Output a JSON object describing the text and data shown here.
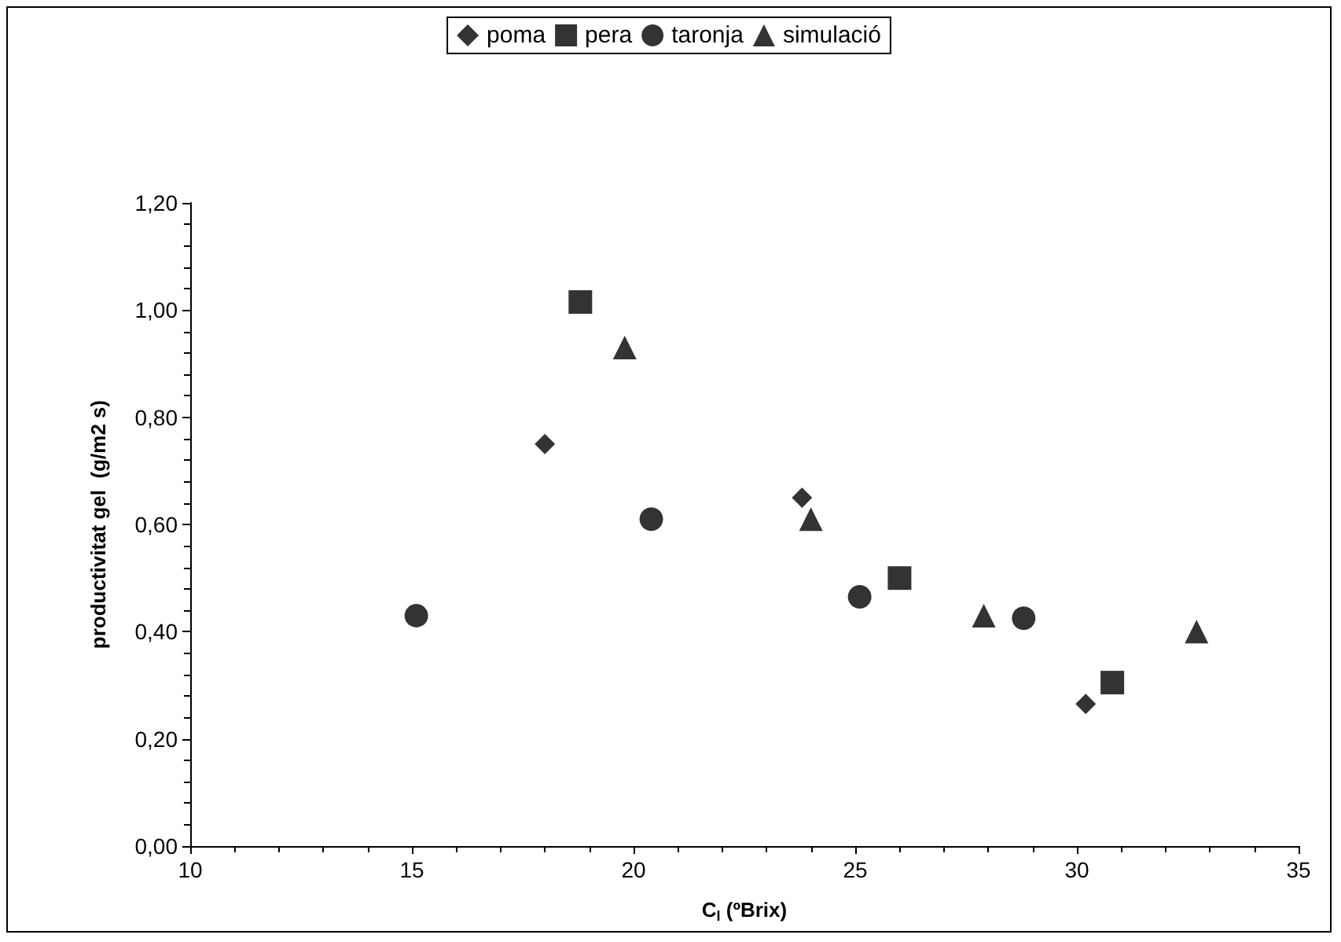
{
  "chart_data": {
    "type": "scatter",
    "xlabel": "C$_{l}$ (ºBrix)",
    "ylabel": "productivitat gel  (g/m2 s)",
    "xlim": [
      10,
      35
    ],
    "xticks": [
      10,
      15,
      20,
      25,
      30,
      35
    ],
    "ylim": [
      0,
      1.2
    ],
    "yticks": [
      {
        "value": 0,
        "label": "0,00"
      },
      {
        "value": 0.2,
        "label": "0,20"
      },
      {
        "value": 0.4,
        "label": "0,40"
      },
      {
        "value": 0.6,
        "label": "0,60"
      },
      {
        "value": 0.8,
        "label": "0,80"
      },
      {
        "value": 1.0,
        "label": "1,00"
      },
      {
        "value": 1.2,
        "label": "1,20"
      }
    ],
    "grid": false,
    "legend": "top",
    "series": [
      {
        "name": "poma",
        "color": "#000000",
        "marker": "diamond",
        "x": [
          18.0,
          23.8,
          30.2
        ],
        "values": [
          0.75,
          0.65,
          0.265
        ]
      },
      {
        "name": "pera",
        "color": "#000000",
        "marker": "square",
        "x": [
          18.8,
          26.0,
          30.8
        ],
        "values": [
          1.015,
          0.5,
          0.305
        ]
      },
      {
        "name": "taronja",
        "color": "#000000",
        "marker": "circle",
        "x": [
          15.1,
          20.4,
          25.1,
          28.8
        ],
        "values": [
          0.43,
          0.61,
          0.465,
          0.425
        ]
      },
      {
        "name": "simulació",
        "color": "#000000",
        "marker": "triangle",
        "x": [
          19.8,
          24.0,
          27.9,
          32.7
        ],
        "values": [
          0.93,
          0.61,
          0.43,
          0.4
        ]
      }
    ]
  }
}
